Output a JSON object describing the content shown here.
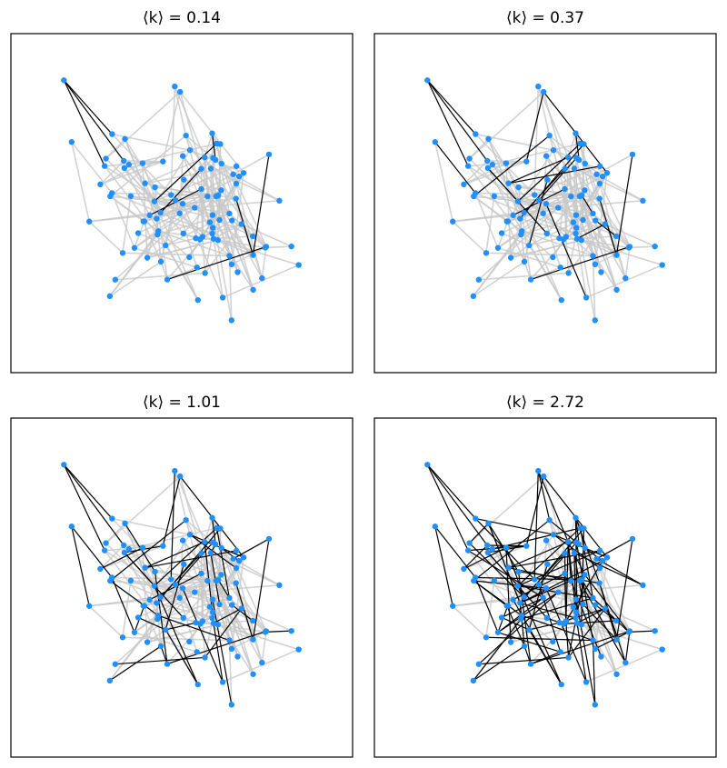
{
  "panels": [
    {
      "title": "⟨k⟩ = 0.14"
    },
    {
      "title": "⟨k⟩ = 0.37"
    },
    {
      "title": "⟨k⟩ = 1.01"
    },
    {
      "title": "⟨k⟩ = 2.72"
    }
  ]
}
